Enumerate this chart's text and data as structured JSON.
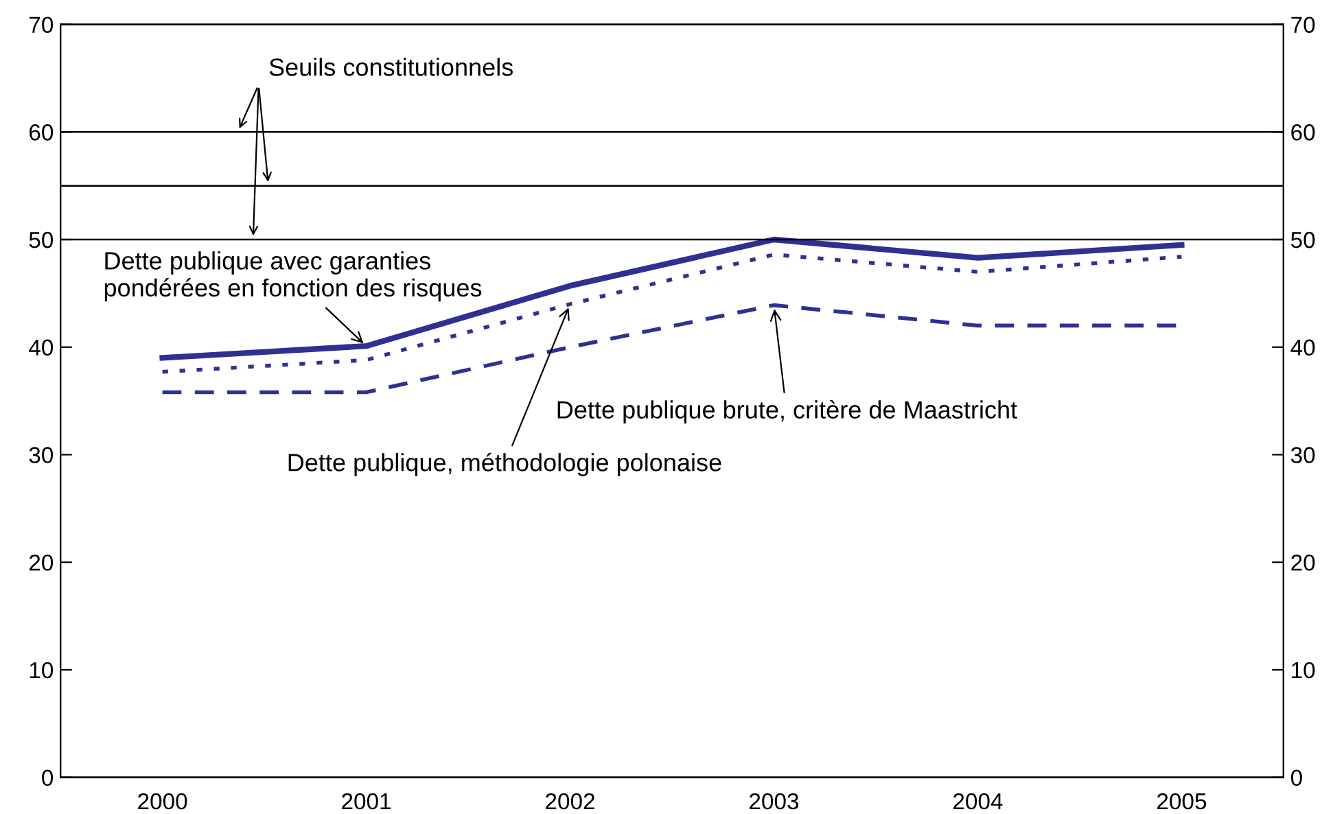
{
  "chart_data": {
    "type": "line",
    "categories": [
      "2000",
      "2001",
      "2002",
      "2003",
      "2004",
      "2005"
    ],
    "series": [
      {
        "color": "#2e3192",
        "line_style": "solid",
        "values": [
          39,
          40.1,
          45.7,
          50,
          48.3,
          49.5
        ]
      },
      {
        "color": "#2e3192",
        "line_style": "dotted",
        "values": [
          37.7,
          38.8,
          44,
          48.6,
          47,
          48.4
        ]
      },
      {
        "color": "#2e3192",
        "line_style": "dashed",
        "values": [
          35.8,
          35.8,
          40,
          43.9,
          42,
          42
        ]
      }
    ],
    "ylim": [
      0,
      70
    ],
    "yticks": [
      0,
      10,
      20,
      30,
      40,
      50,
      60,
      70
    ],
    "y2lim": [
      0,
      70
    ],
    "y2ticks": [
      0,
      10,
      20,
      30,
      40,
      50,
      60,
      70
    ],
    "ref_lines": [
      {
        "axis": "y",
        "value": 50,
        "color": "#000000"
      },
      {
        "axis": "y",
        "value": 55,
        "color": "#000000"
      },
      {
        "axis": "y",
        "value": 60,
        "color": "#000000"
      }
    ],
    "annotations": [
      {
        "text": "Seuils constitutionnels",
        "y": 60
      },
      {
        "text": "Dette publique avec garanties\npondérées en fonction des risques",
        "x": "2001",
        "y": 40.1
      },
      {
        "text": "Dette publique, méthodologie polonaise",
        "x": "2002",
        "y": 44
      },
      {
        "text": "Dette publique brute, critère de Maastricht",
        "x": "2003",
        "y": 43.9
      }
    ],
    "grid": false,
    "legend": false,
    "marker": "none"
  }
}
